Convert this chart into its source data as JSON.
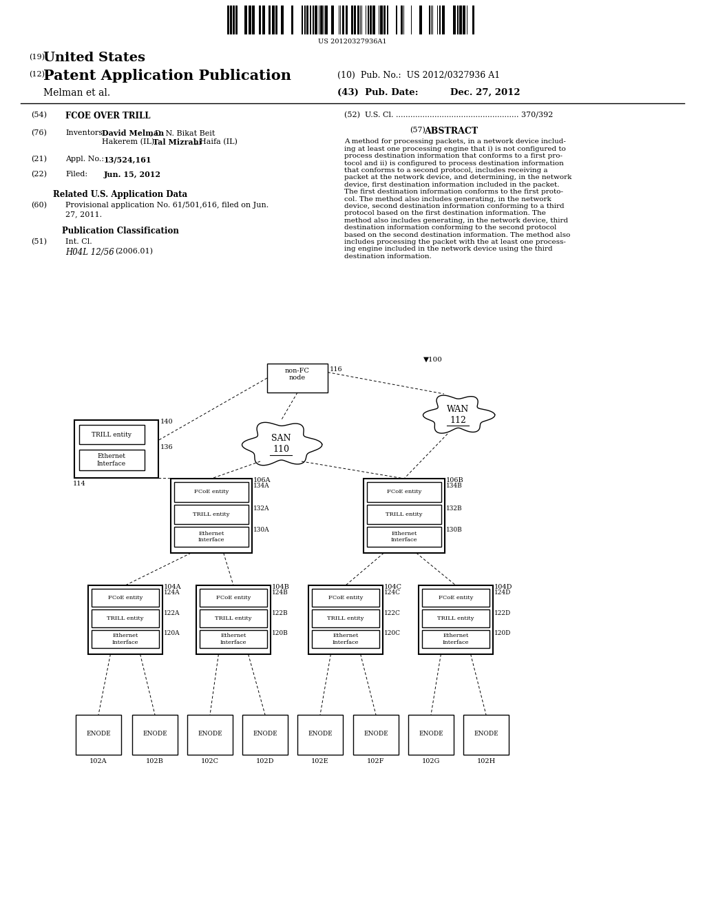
{
  "bg_color": "#ffffff",
  "barcode_text": "US 20120327936A1",
  "header_19": "(19)",
  "header_19_text": "United States",
  "header_12": "(12)",
  "header_12_text": "Patent Application Publication",
  "header_10_text": "(10)  Pub. No.:  US 2012/0327936 A1",
  "inventor_name": "Melman et al.",
  "header_43_text": "(43)  Pub. Date:          Dec. 27, 2012",
  "right_col_52": "(52)  U.S. Cl. ................................................... 370/392",
  "abstract_num": "(57)",
  "abstract_title": "ABSTRACT",
  "abstract_text": "A method for processing packets, in a network device includ-\ning at least one processing engine that i) is not configured to\nprocess destination information that conforms to a first pro-\ntocol and ii) is configured to process destination information\nthat conforms to a second protocol, includes receiving a\npacket at the network device, and determining, in the network\ndevice, first destination information included in the packet.\nThe first destination information conforms to the first proto-\ncol. The method also includes generating, in the network\ndevice, second destination information conforming to a third\nprotocol based on the first destination information. The\nmethod also includes generating, in the network device, third\ndestination information conforming to the second protocol\nbased on the second destination information. The method also\nincludes processing the packet with the at least one process-\ning engine included in the network device using the third\ndestination information."
}
